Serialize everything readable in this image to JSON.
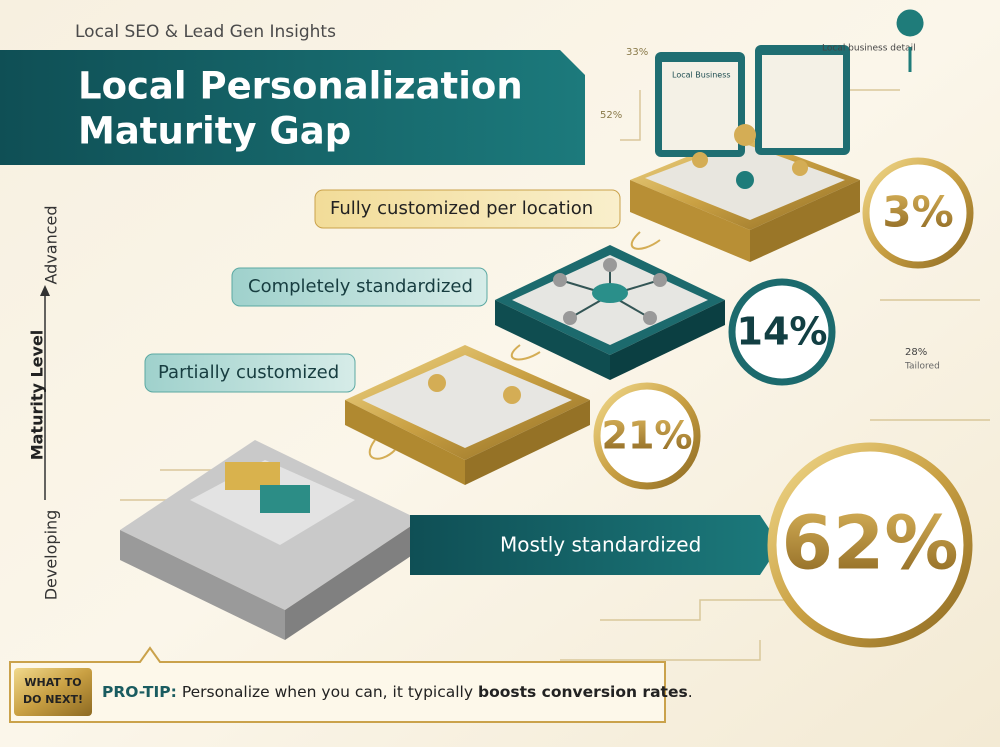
{
  "header": {
    "kicker": "Local SEO & Lead Gen Insights",
    "title_lines": [
      "Local Personalization",
      "Maturity Gap"
    ]
  },
  "axis": {
    "label": "Maturity Level",
    "top": "Advanced",
    "bottom": "Developing"
  },
  "levels": [
    {
      "label": "Fully customized per location",
      "value": "3%"
    },
    {
      "label": "Completely standardized",
      "value": "14%"
    },
    {
      "label": "Partially customized",
      "value": "21%"
    },
    {
      "label": "Mostly standardized",
      "value": "62%"
    }
  ],
  "annotations": [
    "Local business detail",
    "Local Business",
    "33%",
    "52%",
    "28%",
    "Tailored"
  ],
  "tip": {
    "badge_lines": [
      "WHAT TO",
      "DO NEXT!"
    ],
    "lead": "PRO-TIP:",
    "text": "Personalize when you can, it typically",
    "emphasis": "boosts conversion rates",
    "end": "."
  }
}
